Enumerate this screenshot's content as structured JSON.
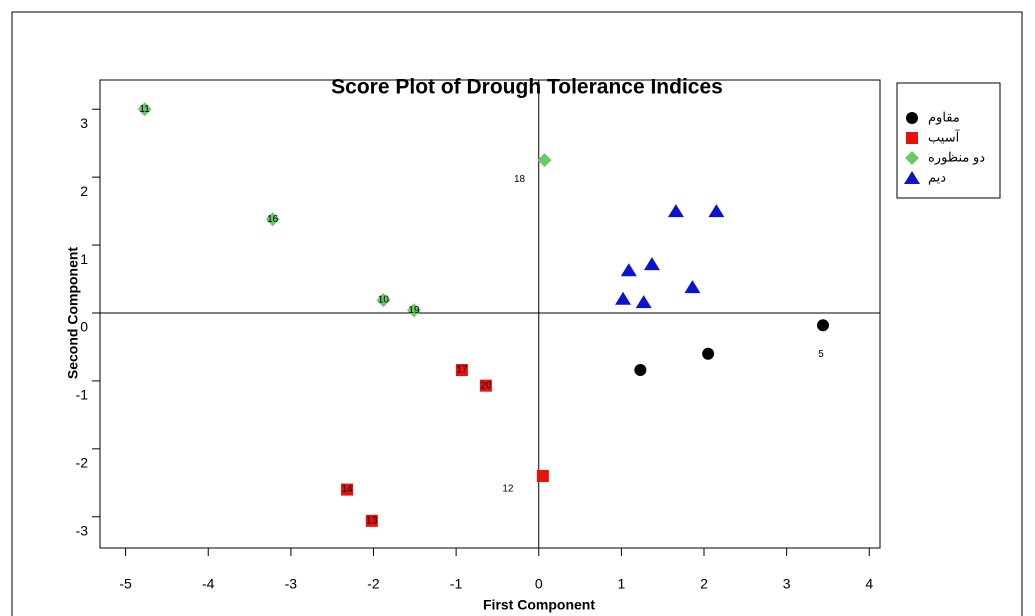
{
  "chart_data": {
    "type": "scatter",
    "title": "Score Plot of Drough Tolerance Indices",
    "x_label": "First Component",
    "y_label": "Second Component",
    "xlim": [
      -5.31,
      4.13
    ],
    "ylim": [
      -3.46,
      3.43
    ],
    "xticks": [
      -5,
      -4,
      -3,
      -2,
      -1,
      0,
      1,
      2,
      3,
      4
    ],
    "yticks": [
      -3,
      -2,
      -1,
      0,
      1,
      2,
      3
    ],
    "series": [
      {
        "name": "مقاوم",
        "color": "#000000",
        "marker": "circle",
        "x": [
          1.23,
          2.05,
          3.44
        ],
        "y": [
          -0.84,
          -0.6,
          -0.18
        ],
        "labels": [
          null,
          null,
          "5"
        ]
      },
      {
        "name": "آسیب",
        "color": "#e8120c",
        "marker": "square",
        "x": [
          -0.93,
          -0.64,
          0.05,
          -2.32,
          -2.02
        ],
        "y": [
          -0.84,
          -1.07,
          -2.4,
          -2.6,
          -3.06
        ],
        "labels": [
          "17",
          "20",
          "12",
          "14",
          "13"
        ]
      },
      {
        "name": "دو منظوره",
        "color": "#6ac96a",
        "marker": "diamond",
        "x": [
          -4.77,
          0.07,
          -3.22,
          -1.88,
          -1.51
        ],
        "y": [
          3.0,
          2.25,
          1.38,
          0.19,
          0.04
        ],
        "labels": [
          "11",
          "18",
          "16",
          "10",
          "19"
        ]
      },
      {
        "name": "دیم",
        "color": "#0a14d0",
        "marker": "triangle",
        "x": [
          1.66,
          2.15,
          1.09,
          1.37,
          1.86,
          1.02,
          1.27
        ],
        "y": [
          1.5,
          1.5,
          0.63,
          0.72,
          0.38,
          0.21,
          0.16
        ],
        "labels": [
          null,
          null,
          null,
          null,
          null,
          null,
          null
        ]
      }
    ]
  }
}
